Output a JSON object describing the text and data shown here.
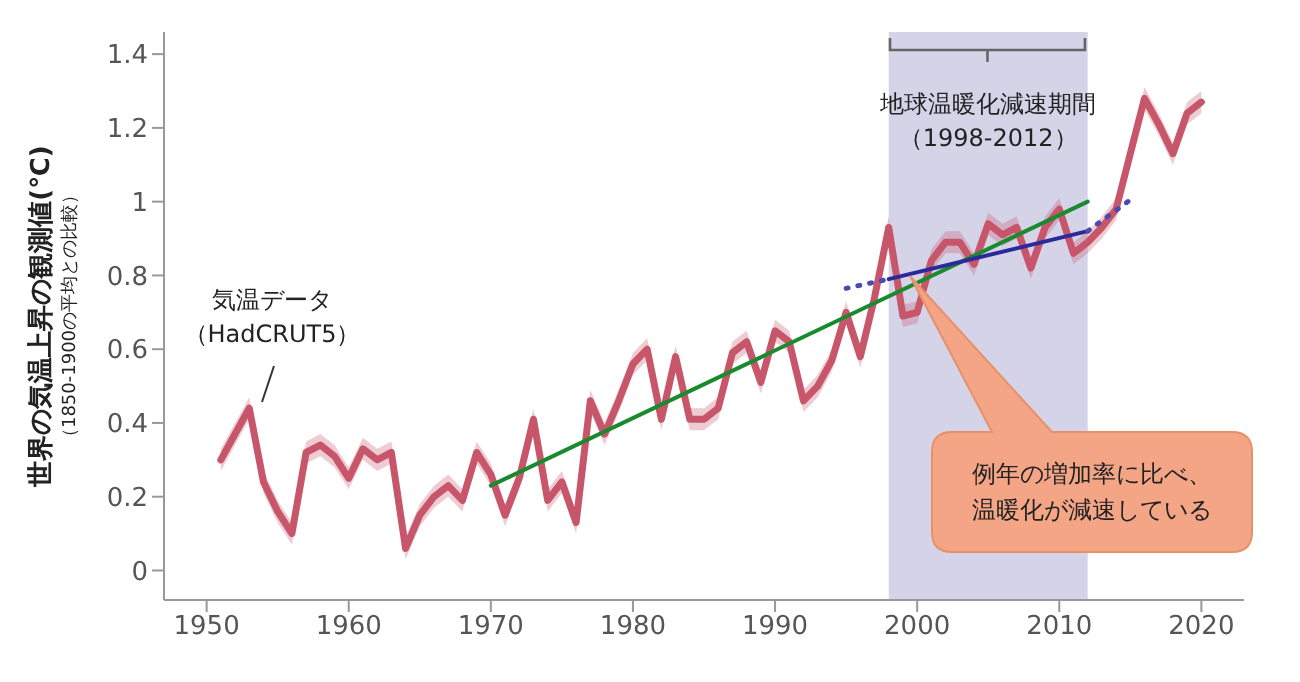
{
  "chart_data": {
    "type": "line",
    "ylabel": "世界の気温上昇の観測値(℃)\n（1850-1900の平均との比較）",
    "xlim": [
      1947,
      2023
    ],
    "xticks": [
      1950,
      1960,
      1970,
      1980,
      1990,
      2000,
      2010,
      2020
    ],
    "ylim": [
      -0.08,
      1.46
    ],
    "yticks": [
      0,
      0.2,
      0.4,
      0.6,
      0.8,
      1,
      1.2,
      1.4
    ],
    "marker": "none",
    "series": [
      {
        "color": "#c8566b",
        "x": [
          1951,
          1952,
          1953,
          1954,
          1955,
          1956,
          1957,
          1958,
          1959,
          1960,
          1961,
          1962,
          1963,
          1964,
          1965,
          1966,
          1967,
          1968,
          1969,
          1970,
          1971,
          1972,
          1973,
          1974,
          1975,
          1976,
          1977,
          1978,
          1979,
          1980,
          1981,
          1982,
          1983,
          1984,
          1985,
          1986,
          1987,
          1988,
          1989,
          1990,
          1991,
          1992,
          1993,
          1994,
          1995,
          1996,
          1997,
          1998,
          1999,
          2000,
          2001,
          2002,
          2003,
          2004,
          2005,
          2006,
          2007,
          2008,
          2009,
          2010,
          2011,
          2012,
          2013,
          2014,
          2015,
          2016,
          2017,
          2018,
          2019,
          2020
        ],
        "values": [
          0.3,
          0.37,
          0.44,
          0.24,
          0.16,
          0.1,
          0.32,
          0.34,
          0.31,
          0.25,
          0.33,
          0.3,
          0.32,
          0.06,
          0.15,
          0.2,
          0.23,
          0.19,
          0.32,
          0.26,
          0.15,
          0.25,
          0.41,
          0.19,
          0.24,
          0.13,
          0.46,
          0.37,
          0.46,
          0.56,
          0.6,
          0.41,
          0.58,
          0.41,
          0.41,
          0.44,
          0.59,
          0.62,
          0.51,
          0.65,
          0.62,
          0.46,
          0.5,
          0.57,
          0.7,
          0.58,
          0.74,
          0.93,
          0.69,
          0.7,
          0.84,
          0.89,
          0.89,
          0.83,
          0.94,
          0.91,
          0.93,
          0.82,
          0.93,
          0.98,
          0.86,
          0.89,
          0.93,
          0.98,
          1.13,
          1.28,
          1.21,
          1.13,
          1.24,
          1.27
        ],
        "lower": [
          0.27,
          0.34,
          0.41,
          0.21,
          0.13,
          0.07,
          0.29,
          0.31,
          0.28,
          0.22,
          0.3,
          0.27,
          0.29,
          0.03,
          0.12,
          0.17,
          0.2,
          0.16,
          0.29,
          0.23,
          0.12,
          0.22,
          0.38,
          0.16,
          0.21,
          0.1,
          0.43,
          0.34,
          0.43,
          0.53,
          0.57,
          0.38,
          0.55,
          0.38,
          0.38,
          0.41,
          0.56,
          0.59,
          0.48,
          0.62,
          0.59,
          0.43,
          0.47,
          0.54,
          0.67,
          0.55,
          0.71,
          0.9,
          0.66,
          0.67,
          0.81,
          0.86,
          0.86,
          0.8,
          0.91,
          0.88,
          0.9,
          0.79,
          0.9,
          0.95,
          0.83,
          0.86,
          0.9,
          0.95,
          1.1,
          1.25,
          1.18,
          1.1,
          1.21,
          1.24
        ],
        "upper": [
          0.33,
          0.4,
          0.47,
          0.27,
          0.19,
          0.13,
          0.35,
          0.37,
          0.34,
          0.28,
          0.36,
          0.33,
          0.35,
          0.09,
          0.18,
          0.23,
          0.26,
          0.22,
          0.35,
          0.29,
          0.18,
          0.28,
          0.44,
          0.22,
          0.27,
          0.16,
          0.49,
          0.4,
          0.49,
          0.59,
          0.63,
          0.44,
          0.61,
          0.44,
          0.44,
          0.47,
          0.62,
          0.65,
          0.54,
          0.68,
          0.65,
          0.49,
          0.53,
          0.6,
          0.73,
          0.61,
          0.77,
          0.96,
          0.72,
          0.73,
          0.87,
          0.92,
          0.92,
          0.86,
          0.97,
          0.94,
          0.96,
          0.85,
          0.96,
          1.01,
          0.89,
          0.92,
          0.96,
          1.01,
          1.16,
          1.31,
          1.24,
          1.16,
          1.27,
          1.3
        ]
      },
      {
        "color": "#1a8a2e",
        "x": [
          1970,
          2012
        ],
        "values": [
          0.23,
          1.0
        ]
      },
      {
        "color": "#2a2a9a",
        "x": [
          1998,
          2012
        ],
        "values": [
          0.79,
          0.92
        ]
      },
      {
        "color": "#4a4ab0",
        "line_style": "dotted",
        "x": [
          1995,
          1998,
          2005,
          2012,
          2015
        ],
        "values": [
          0.765,
          0.79,
          null,
          0.92,
          1.005
        ]
      }
    ],
    "bands": [
      {
        "axis": "x",
        "from": 1998,
        "to": 2012,
        "label": "地球温暖化減速期間（1998-2012）",
        "color": "#d5d3e8"
      }
    ],
    "annotations": [
      "気温データ（HadCRUT5）",
      "例年の増加率に比べ、温暖化が減速している"
    ]
  }
}
